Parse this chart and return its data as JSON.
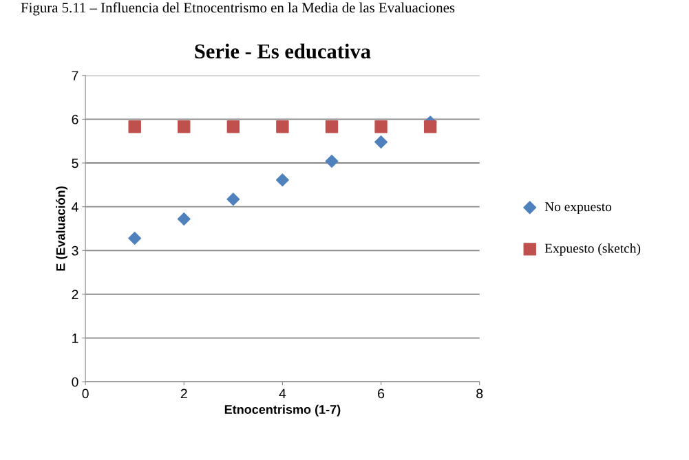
{
  "chart_data": {
    "type": "scatter",
    "title": "Serie - Es educativa",
    "annotations": [
      "Figura 5.11 – Influencia del Etnocentrismo en la Media de las Evaluaciones"
    ],
    "xlabel": "Etnocentrismo (1-7)",
    "ylabel": "E (Evaluación)",
    "xlim": [
      0,
      8
    ],
    "xticks": [
      0,
      2,
      4,
      6,
      8
    ],
    "ylim": [
      0,
      7
    ],
    "yticks": [
      0,
      1,
      2,
      3,
      4,
      5,
      6,
      7
    ],
    "grid": "y",
    "legend": "right",
    "series": [
      {
        "name": "No expuesto",
        "color": "#4f81bd",
        "marker": "diamond",
        "x": [
          1,
          2,
          3,
          4,
          5,
          6,
          7
        ],
        "values": [
          3.28,
          3.72,
          4.17,
          4.61,
          5.04,
          5.48,
          5.93
        ]
      },
      {
        "name": "Expuesto (sketch)",
        "color": "#c0504d",
        "marker": "square",
        "x": [
          1,
          2,
          3,
          4,
          5,
          6,
          7
        ],
        "values": [
          5.83,
          5.83,
          5.83,
          5.83,
          5.83,
          5.83,
          5.83
        ]
      }
    ]
  }
}
